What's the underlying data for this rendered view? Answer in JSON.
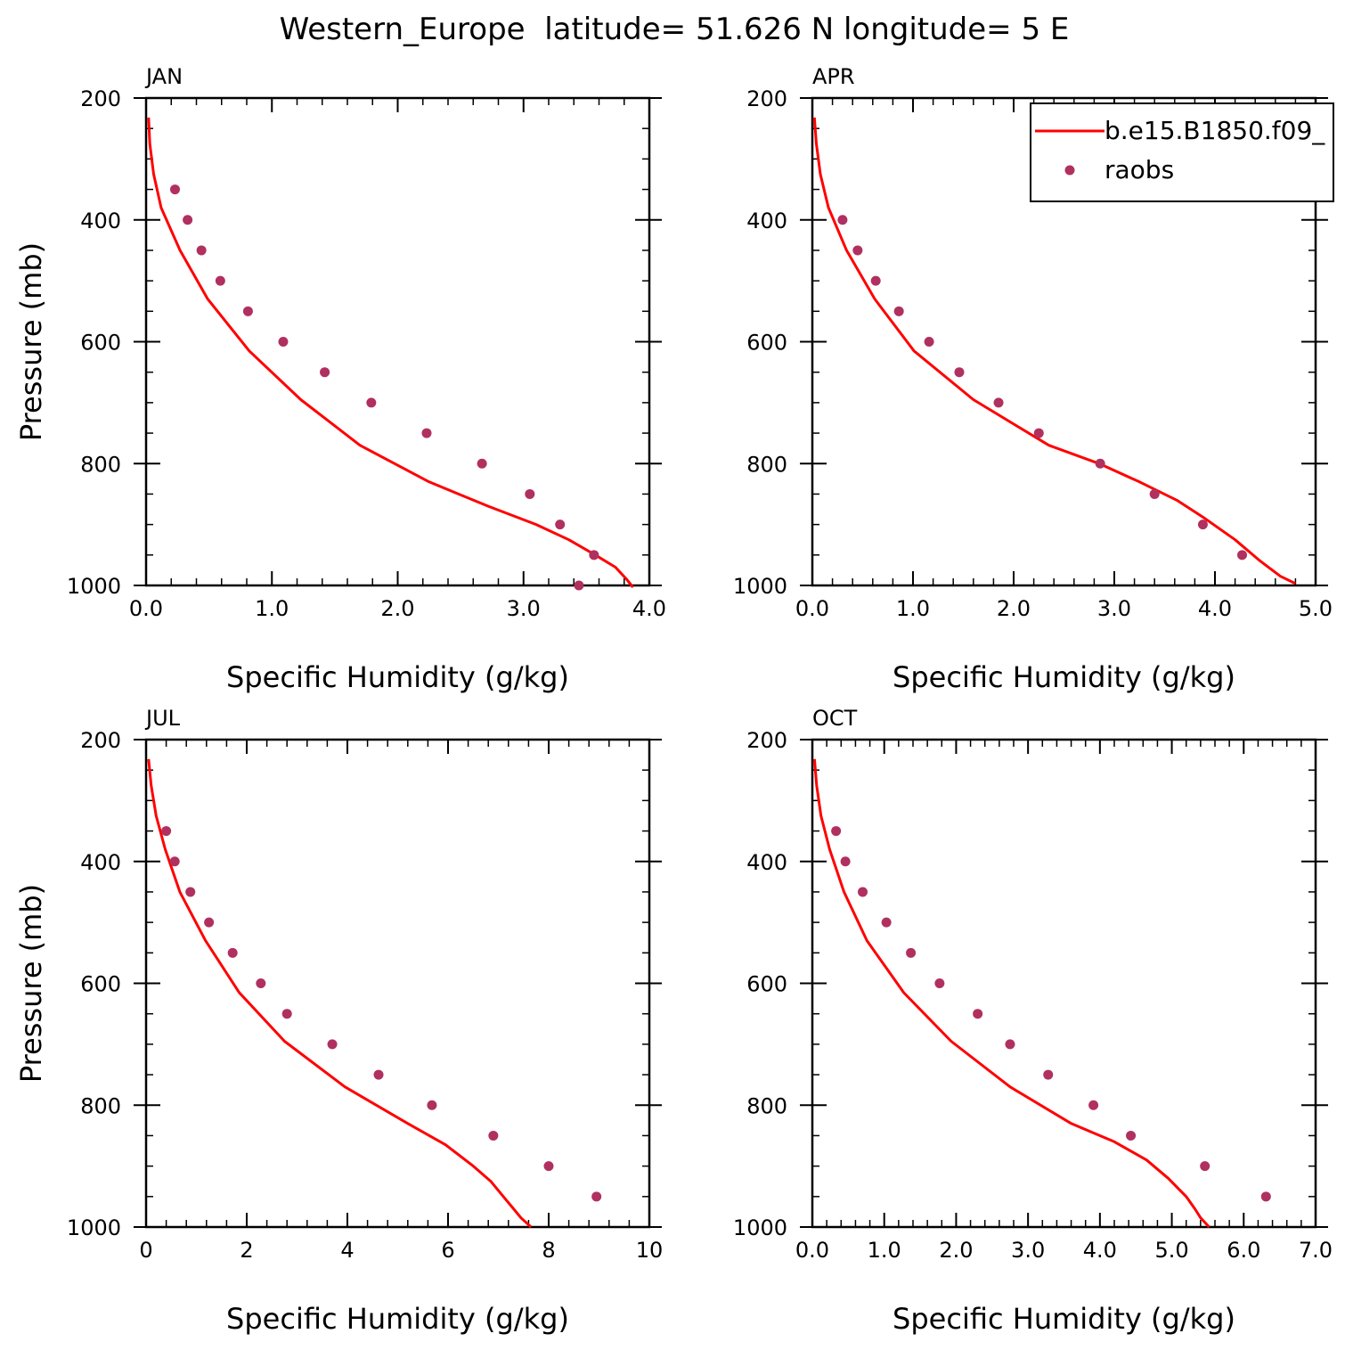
{
  "title": "Western_Europe  latitude= 51.626 N longitude= 5 E",
  "colors": {
    "model": "#ff0000",
    "obs": "#b03060",
    "axis": "#000000"
  },
  "legend": {
    "model_label": "b.e15.B1850.f09_",
    "obs_label": "raobs",
    "location": "top-right of APR panel"
  },
  "chart_data": [
    {
      "type": "line+scatter",
      "panel_title": "JAN",
      "xlabel": "Specific Humidity (g/kg)",
      "ylabel": "Pressure (mb)",
      "xlim": [
        0,
        4
      ],
      "ylim": [
        1000,
        200
      ],
      "y_inverted": true,
      "xticks": [
        0,
        1,
        2,
        3,
        4
      ],
      "xtick_labels": [
        "0.0",
        "1.0",
        "2.0",
        "3.0",
        "4.0"
      ],
      "yticks": [
        200,
        400,
        600,
        800,
        1000
      ],
      "ytick_labels": [
        "200",
        "400",
        "600",
        "800",
        "1000"
      ],
      "series": [
        {
          "name": "b.e15.B1850.f09_",
          "kind": "line",
          "x": [
            0.02,
            0.03,
            0.06,
            0.12,
            0.27,
            0.49,
            0.82,
            1.23,
            1.7,
            2.25,
            2.72,
            3.1,
            3.36,
            3.57,
            3.73,
            3.82,
            3.87
          ],
          "y": [
            232,
            275,
            325,
            380,
            450,
            530,
            615,
            695,
            770,
            830,
            870,
            900,
            925,
            950,
            970,
            990,
            1003
          ]
        },
        {
          "name": "raobs",
          "kind": "scatter",
          "x": [
            0.23,
            0.33,
            0.44,
            0.59,
            0.81,
            1.09,
            1.42,
            1.79,
            2.23,
            2.67,
            3.05,
            3.29,
            3.56,
            3.44
          ],
          "y": [
            350,
            400,
            450,
            500,
            550,
            600,
            650,
            700,
            750,
            800,
            850,
            900,
            950,
            1000
          ]
        }
      ]
    },
    {
      "type": "line+scatter",
      "panel_title": "APR",
      "xlabel": "Specific Humidity (g/kg)",
      "ylabel": "",
      "xlim": [
        0,
        5
      ],
      "ylim": [
        1000,
        200
      ],
      "y_inverted": true,
      "xticks": [
        0,
        1,
        2,
        3,
        4,
        5
      ],
      "xtick_labels": [
        "0.0",
        "1.0",
        "2.0",
        "3.0",
        "4.0",
        "5.0"
      ],
      "yticks": [
        200,
        400,
        600,
        800,
        1000
      ],
      "ytick_labels": [
        "200",
        "400",
        "600",
        "800",
        "1000"
      ],
      "series": [
        {
          "name": "b.e15.B1850.f09_",
          "kind": "line",
          "x": [
            0.02,
            0.04,
            0.08,
            0.16,
            0.34,
            0.62,
            1.01,
            1.6,
            2.35,
            2.85,
            3.25,
            3.62,
            3.9,
            4.2,
            4.45,
            4.65,
            4.8
          ],
          "y": [
            232,
            275,
            325,
            380,
            450,
            530,
            615,
            695,
            770,
            800,
            830,
            860,
            890,
            925,
            960,
            985,
            997
          ]
        },
        {
          "name": "raobs",
          "kind": "scatter",
          "x": [
            0.3,
            0.45,
            0.63,
            0.86,
            1.16,
            1.46,
            1.85,
            2.25,
            2.86,
            3.4,
            3.88,
            4.27
          ],
          "y": [
            400,
            450,
            500,
            550,
            600,
            650,
            700,
            750,
            800,
            850,
            900,
            950
          ]
        }
      ]
    },
    {
      "type": "line+scatter",
      "panel_title": "JUL",
      "xlabel": "Specific Humidity (g/kg)",
      "ylabel": "Pressure (mb)",
      "xlim": [
        0,
        10
      ],
      "ylim": [
        1000,
        200
      ],
      "y_inverted": true,
      "xticks": [
        0,
        2,
        4,
        6,
        8,
        10
      ],
      "xtick_labels": [
        "0",
        "2",
        "4",
        "6",
        "8",
        "10"
      ],
      "yticks": [
        200,
        400,
        600,
        800,
        1000
      ],
      "ytick_labels": [
        "200",
        "400",
        "600",
        "800",
        "1000"
      ],
      "series": [
        {
          "name": "b.e15.B1850.f09_",
          "kind": "line",
          "x": [
            0.05,
            0.1,
            0.2,
            0.38,
            0.67,
            1.18,
            1.85,
            2.75,
            3.95,
            5.2,
            5.95,
            6.5,
            6.85,
            7.1,
            7.3,
            7.45,
            7.65
          ],
          "y": [
            232,
            275,
            325,
            380,
            450,
            530,
            615,
            695,
            770,
            830,
            865,
            900,
            925,
            950,
            970,
            985,
            1000
          ]
        },
        {
          "name": "raobs",
          "kind": "scatter",
          "x": [
            0.4,
            0.57,
            0.88,
            1.25,
            1.72,
            2.28,
            2.8,
            3.7,
            4.62,
            5.68,
            6.9,
            8.0,
            8.95
          ],
          "y": [
            350,
            400,
            450,
            500,
            550,
            600,
            650,
            700,
            750,
            800,
            850,
            900,
            950
          ]
        }
      ]
    },
    {
      "type": "line+scatter",
      "panel_title": "OCT",
      "xlabel": "Specific Humidity (g/kg)",
      "ylabel": "",
      "xlim": [
        0,
        7
      ],
      "ylim": [
        1000,
        200
      ],
      "y_inverted": true,
      "xticks": [
        0,
        1,
        2,
        3,
        4,
        5,
        6,
        7
      ],
      "xtick_labels": [
        "0.0",
        "1.0",
        "2.0",
        "3.0",
        "4.0",
        "5.0",
        "6.0",
        "7.0"
      ],
      "yticks": [
        200,
        400,
        600,
        800,
        1000
      ],
      "ytick_labels": [
        "200",
        "400",
        "600",
        "800",
        "1000"
      ],
      "series": [
        {
          "name": "b.e15.B1850.f09_",
          "kind": "line",
          "x": [
            0.03,
            0.06,
            0.12,
            0.24,
            0.44,
            0.76,
            1.27,
            1.93,
            2.75,
            3.6,
            4.2,
            4.65,
            4.95,
            5.2,
            5.32,
            5.4,
            5.52
          ],
          "y": [
            232,
            275,
            325,
            380,
            450,
            530,
            615,
            695,
            770,
            830,
            860,
            890,
            920,
            950,
            970,
            985,
            1000
          ]
        },
        {
          "name": "raobs",
          "kind": "scatter",
          "x": [
            0.33,
            0.46,
            0.7,
            1.03,
            1.37,
            1.77,
            2.3,
            2.75,
            3.28,
            3.91,
            4.43,
            5.46,
            6.31
          ],
          "y": [
            350,
            400,
            450,
            500,
            550,
            600,
            650,
            700,
            750,
            800,
            850,
            900,
            950
          ]
        }
      ]
    }
  ]
}
